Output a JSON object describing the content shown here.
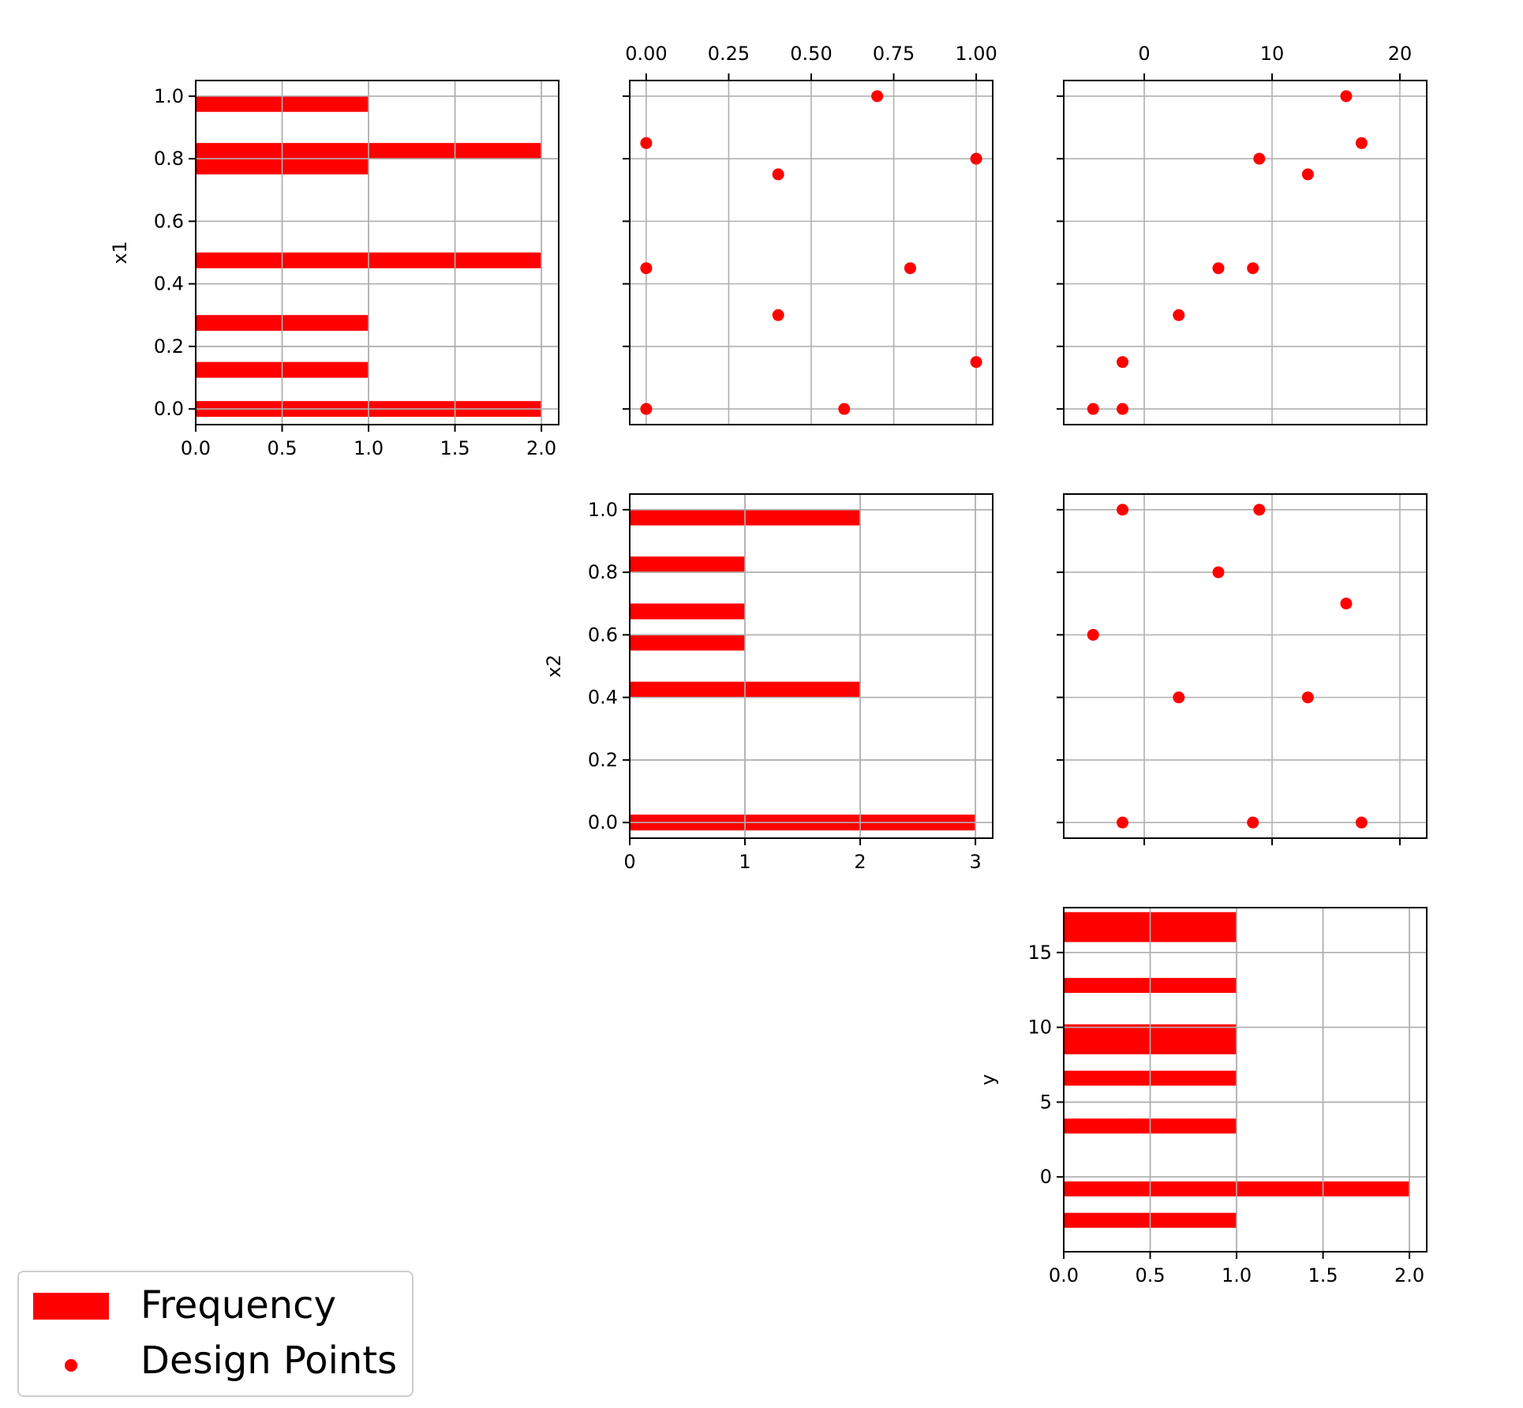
{
  "colors": {
    "marker": "#ff0000",
    "grid": "#b0b0b0",
    "axes": "#000000"
  },
  "legend": {
    "placement": "bottom-left",
    "items": [
      {
        "label": "Frequency",
        "kind": "bar-patch"
      },
      {
        "label": "Design Points",
        "kind": "dot"
      }
    ]
  },
  "chart_data": [
    {
      "id": "hist-x1",
      "type": "bar",
      "orientation": "horizontal",
      "ylabel": "x1",
      "xlabel": "",
      "xlim": [
        0,
        2.1
      ],
      "ylim": [
        -0.05,
        1.05
      ],
      "xticks": [
        "0.0",
        "0.5",
        "1.0",
        "1.5",
        "2.0"
      ],
      "xtick_values": [
        0,
        0.5,
        1,
        1.5,
        2
      ],
      "yticks": [
        "0.0",
        "0.2",
        "0.4",
        "0.6",
        "0.8",
        "1.0"
      ],
      "ytick_values": [
        0,
        0.2,
        0.4,
        0.6,
        0.8,
        1.0
      ],
      "bars": [
        {
          "y": 0.0,
          "value": 2
        },
        {
          "y": 0.125,
          "value": 1
        },
        {
          "y": 0.275,
          "value": 1
        },
        {
          "y": 0.475,
          "value": 2
        },
        {
          "y": 0.775,
          "value": 1
        },
        {
          "y": 0.825,
          "value": 2
        },
        {
          "y": 0.975,
          "value": 1
        }
      ]
    },
    {
      "id": "scatter-x1-x2",
      "type": "scatter",
      "xlim": [
        -0.05,
        1.05
      ],
      "ylim": [
        -0.05,
        1.05
      ],
      "xticks_top": [
        "0.00",
        "0.25",
        "0.50",
        "0.75",
        "1.00"
      ],
      "xtick_values": [
        0,
        0.25,
        0.5,
        0.75,
        1.0
      ],
      "ytick_values": [
        0,
        0.2,
        0.4,
        0.6,
        0.8,
        1.0
      ],
      "points": [
        {
          "x": 0.0,
          "y": 0.85
        },
        {
          "x": 0.4,
          "y": 0.75
        },
        {
          "x": 0.7,
          "y": 1.0
        },
        {
          "x": 1.0,
          "y": 0.8
        },
        {
          "x": 0.0,
          "y": 0.45
        },
        {
          "x": 0.8,
          "y": 0.45
        },
        {
          "x": 0.4,
          "y": 0.3
        },
        {
          "x": 1.0,
          "y": 0.15
        },
        {
          "x": 0.0,
          "y": 0.0
        },
        {
          "x": 0.6,
          "y": 0.0
        }
      ]
    },
    {
      "id": "scatter-x1-y",
      "type": "scatter",
      "xlim": [
        -6.3,
        22.1
      ],
      "ylim": [
        -0.05,
        1.05
      ],
      "xticks_top": [
        "0",
        "10",
        "20"
      ],
      "xtick_values": [
        0,
        10,
        20
      ],
      "ytick_values": [
        0,
        0.2,
        0.4,
        0.6,
        0.8,
        1.0
      ],
      "points": [
        {
          "x": 15.8,
          "y": 1.0
        },
        {
          "x": 17.0,
          "y": 0.85
        },
        {
          "x": 9.0,
          "y": 0.8
        },
        {
          "x": 12.8,
          "y": 0.75
        },
        {
          "x": 5.8,
          "y": 0.45
        },
        {
          "x": 8.5,
          "y": 0.45
        },
        {
          "x": 2.7,
          "y": 0.3
        },
        {
          "x": -1.7,
          "y": 0.15
        },
        {
          "x": -4.0,
          "y": 0.0
        },
        {
          "x": -1.7,
          "y": 0.0
        }
      ]
    },
    {
      "id": "hist-x2",
      "type": "bar",
      "orientation": "horizontal",
      "ylabel": "x2",
      "xlabel": "",
      "xlim": [
        0,
        3.15
      ],
      "ylim": [
        -0.05,
        1.05
      ],
      "xticks": [
        "0",
        "1",
        "2",
        "3"
      ],
      "xtick_values": [
        0,
        1,
        2,
        3
      ],
      "yticks": [
        "0.0",
        "0.2",
        "0.4",
        "0.6",
        "0.8",
        "1.0"
      ],
      "ytick_values": [
        0,
        0.2,
        0.4,
        0.6,
        0.8,
        1.0
      ],
      "bars": [
        {
          "y": 0.0,
          "value": 3
        },
        {
          "y": 0.425,
          "value": 2
        },
        {
          "y": 0.575,
          "value": 1
        },
        {
          "y": 0.675,
          "value": 1
        },
        {
          "y": 0.825,
          "value": 1
        },
        {
          "y": 0.975,
          "value": 2
        }
      ]
    },
    {
      "id": "scatter-x2-y",
      "type": "scatter",
      "xlim": [
        -6.3,
        22.1
      ],
      "ylim": [
        -0.05,
        1.05
      ],
      "xtick_values": [
        0,
        10,
        20
      ],
      "ytick_values": [
        0,
        0.2,
        0.4,
        0.6,
        0.8,
        1.0
      ],
      "points": [
        {
          "x": -1.7,
          "y": 1.0
        },
        {
          "x": 9.0,
          "y": 1.0
        },
        {
          "x": 5.8,
          "y": 0.8
        },
        {
          "x": 15.8,
          "y": 0.7
        },
        {
          "x": -4.0,
          "y": 0.6
        },
        {
          "x": 2.7,
          "y": 0.4
        },
        {
          "x": 12.8,
          "y": 0.4
        },
        {
          "x": -1.7,
          "y": 0.0
        },
        {
          "x": 8.5,
          "y": 0.0
        },
        {
          "x": 17.0,
          "y": 0.0
        }
      ]
    },
    {
      "id": "hist-y",
      "type": "bar",
      "orientation": "horizontal",
      "ylabel": "y",
      "xlabel": "",
      "xlim": [
        0,
        2.1
      ],
      "ylim": [
        -5.0,
        18.0
      ],
      "xticks": [
        "0.0",
        "0.5",
        "1.0",
        "1.5",
        "2.0"
      ],
      "xtick_values": [
        0,
        0.5,
        1,
        1.5,
        2
      ],
      "yticks": [
        "0",
        "5",
        "10",
        "15"
      ],
      "ytick_values": [
        0,
        5,
        10,
        15
      ],
      "bars": [
        {
          "y": -3.4,
          "height": 1.0,
          "value": 1
        },
        {
          "y": -1.3,
          "height": 1.0,
          "value": 2
        },
        {
          "y": 2.9,
          "height": 1.0,
          "value": 1
        },
        {
          "y": 6.1,
          "height": 1.0,
          "value": 1
        },
        {
          "y": 8.7,
          "height": 2.0,
          "value": 1
        },
        {
          "y": 12.3,
          "height": 1.0,
          "value": 1
        },
        {
          "y": 16.2,
          "height": 2.0,
          "value": 1
        }
      ]
    }
  ]
}
